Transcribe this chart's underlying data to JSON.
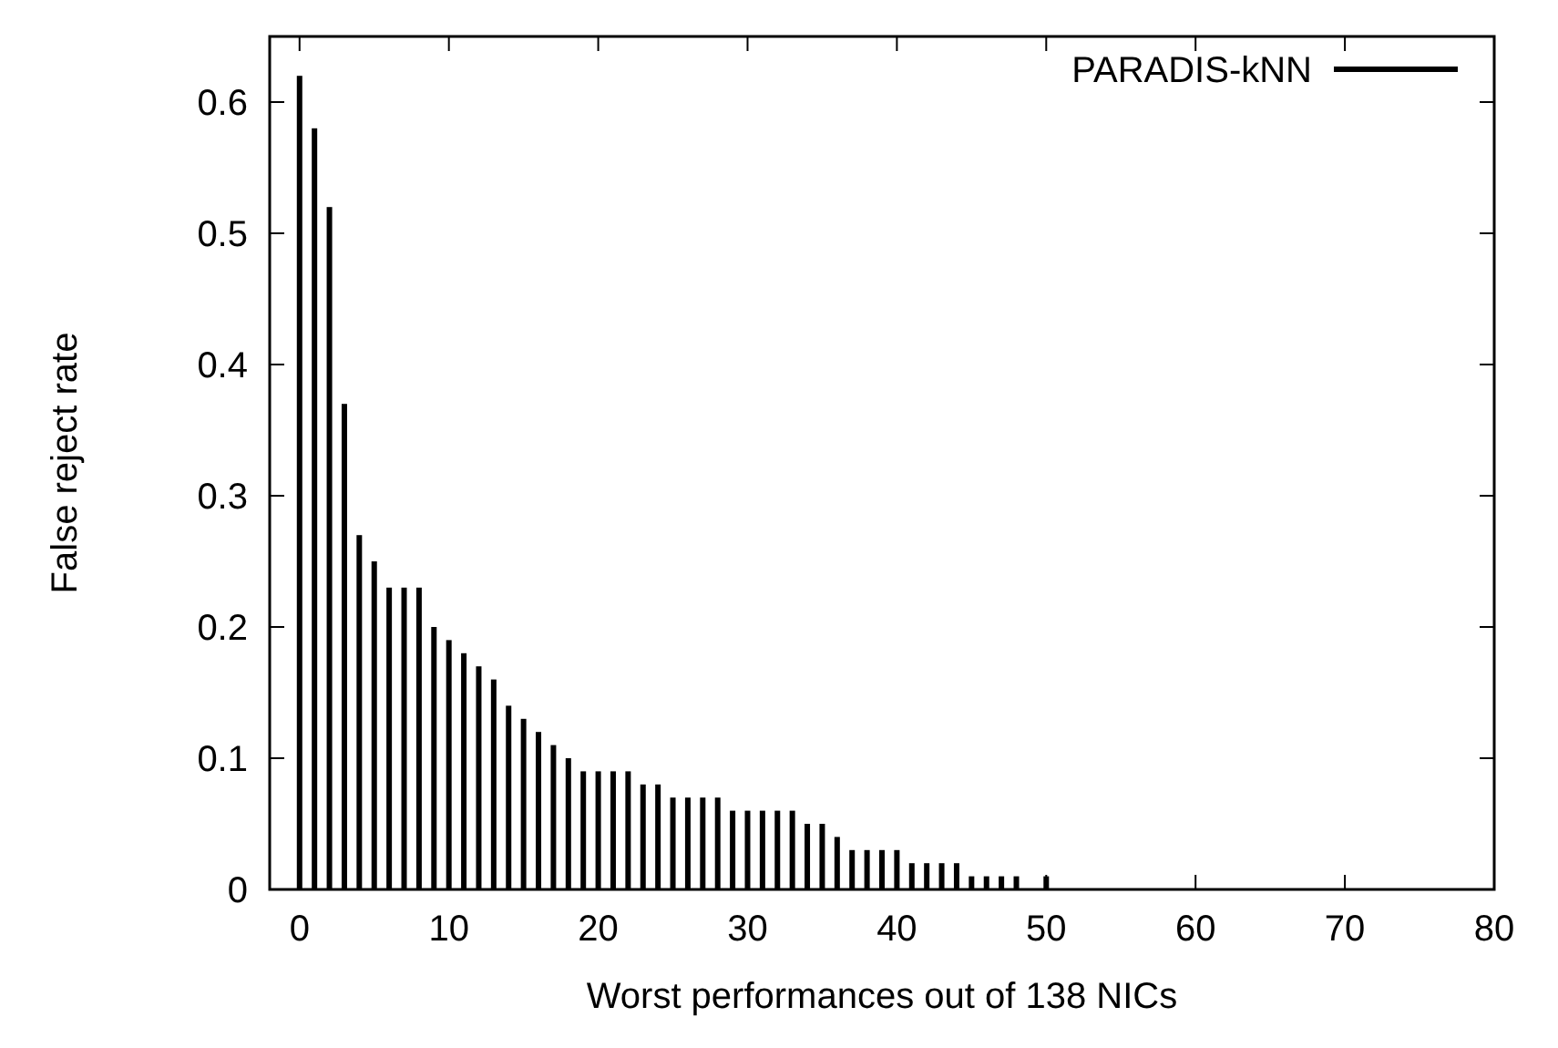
{
  "chart_data": {
    "type": "bar",
    "xlabel": "Worst performances out of 138 NICs",
    "ylabel": "False reject rate",
    "x": [
      0,
      1,
      2,
      3,
      4,
      5,
      6,
      7,
      8,
      9,
      10,
      11,
      12,
      13,
      14,
      15,
      16,
      17,
      18,
      19,
      20,
      21,
      22,
      23,
      24,
      25,
      26,
      27,
      28,
      29,
      30,
      31,
      32,
      33,
      34,
      35,
      36,
      37,
      38,
      39,
      40,
      41,
      42,
      43,
      44,
      45,
      46,
      47,
      48,
      49,
      50
    ],
    "series": [
      {
        "name": "PARADIS-kNN",
        "color": "#000000",
        "values": [
          0.62,
          0.58,
          0.52,
          0.37,
          0.27,
          0.25,
          0.23,
          0.23,
          0.23,
          0.2,
          0.19,
          0.18,
          0.17,
          0.16,
          0.14,
          0.13,
          0.12,
          0.11,
          0.1,
          0.09,
          0.09,
          0.09,
          0.09,
          0.08,
          0.08,
          0.07,
          0.07,
          0.07,
          0.07,
          0.06,
          0.06,
          0.06,
          0.06,
          0.06,
          0.05,
          0.05,
          0.04,
          0.03,
          0.03,
          0.03,
          0.03,
          0.02,
          0.02,
          0.02,
          0.02,
          0.01,
          0.01,
          0.01,
          0.01,
          0,
          0.01
        ]
      }
    ],
    "xlim": [
      -2,
      80
    ],
    "xticks": [
      0,
      10,
      20,
      30,
      40,
      50,
      60,
      70,
      80
    ],
    "ylim": [
      0,
      0.65
    ],
    "yticks": [
      0,
      0.1,
      0.2,
      0.3,
      0.4,
      0.5,
      0.6
    ],
    "legend": "top right",
    "grid": false
  }
}
